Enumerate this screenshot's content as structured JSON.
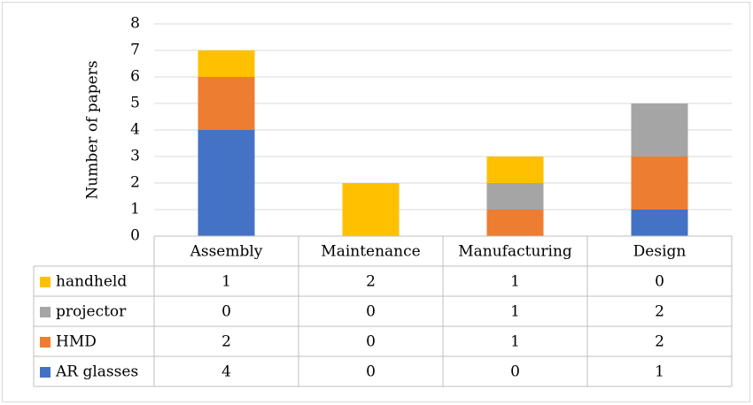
{
  "chart_data": {
    "type": "bar",
    "stacked": true,
    "categories": [
      "Assembly",
      "Maintenance",
      "Manufacturing",
      "Design"
    ],
    "series": [
      {
        "name": "AR glasses",
        "color": "#4472c4",
        "values": [
          4,
          0,
          0,
          1
        ]
      },
      {
        "name": "HMD",
        "color": "#ed7d31",
        "values": [
          2,
          0,
          1,
          2
        ]
      },
      {
        "name": "projector",
        "color": "#a5a5a5",
        "values": [
          0,
          0,
          1,
          2
        ]
      },
      {
        "name": "handheld",
        "color": "#ffc000",
        "values": [
          1,
          2,
          1,
          0
        ]
      }
    ],
    "table_row_order": [
      "handheld",
      "projector",
      "HMD",
      "AR glasses"
    ],
    "ylabel": "Number of papers",
    "ylim": [
      0,
      8
    ],
    "yticks": [
      0,
      1,
      2,
      3,
      4,
      5,
      6,
      7,
      8
    ],
    "grid": true,
    "data_table": true
  }
}
